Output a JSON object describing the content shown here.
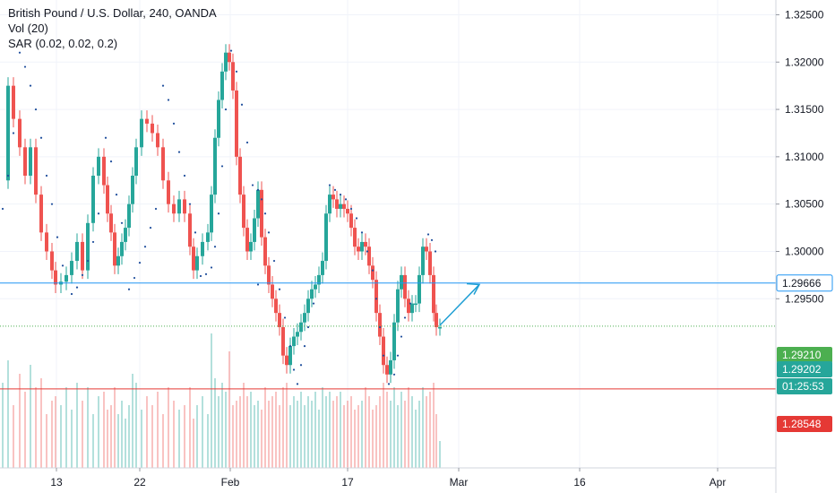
{
  "chart_data": {
    "type": "candlestick",
    "title": "British Pound / U.S. Dollar, 240, OANDA",
    "indicators": [
      "Vol (20)",
      "SAR (0.02, 0.02, 0.2)"
    ],
    "ylim": [
      1.2795,
      1.3258
    ],
    "y_ticks": [
      "1.32500",
      "1.32000",
      "1.31500",
      "1.31000",
      "1.30500",
      "1.30000",
      "1.29500"
    ],
    "x_ticks": [
      "13",
      "22",
      "Feb",
      "17",
      "Mar",
      "16",
      "Apr"
    ],
    "grid": true,
    "colors": {
      "up": "#26a69a",
      "down": "#ef5350",
      "sar": "#1f4e9c",
      "arrow": "#1e9ed4"
    },
    "horizontal_lines": [
      {
        "label": "1.29666",
        "value": 1.29666,
        "color": "#2196f3",
        "style": "solid"
      },
      {
        "label": "1.29210",
        "value": 1.2921,
        "color": "#4caf50",
        "style": "dotted"
      },
      {
        "label": "1.28548",
        "value": 1.28548,
        "color": "#e53935",
        "style": "solid"
      }
    ],
    "price_labels": [
      {
        "text": "1.29210",
        "color": "#4caf50"
      },
      {
        "text": "1.29202",
        "color": "#26a69a"
      },
      {
        "text": "01:25:53",
        "color": "#26a69a"
      },
      {
        "text": "1.28548",
        "color": "#e53935"
      }
    ],
    "price_path": [
      [
        1.3075,
        3
      ],
      [
        1.3175,
        9
      ],
      [
        1.314,
        15
      ],
      [
        1.311,
        22
      ],
      [
        1.308,
        28
      ],
      [
        1.311,
        34
      ],
      [
        1.306,
        40
      ],
      [
        1.302,
        46
      ],
      [
        1.3,
        52
      ],
      [
        1.298,
        58
      ],
      [
        1.2965,
        62
      ],
      [
        1.2968,
        68
      ],
      [
        1.2975,
        74
      ],
      [
        1.299,
        80
      ],
      [
        1.301,
        86
      ],
      [
        1.298,
        92
      ],
      [
        1.303,
        98
      ],
      [
        1.308,
        104
      ],
      [
        1.31,
        110
      ],
      [
        1.307,
        116
      ],
      [
        1.304,
        120
      ],
      [
        1.302,
        124
      ],
      [
        1.2985,
        128
      ],
      [
        1.2995,
        132
      ],
      [
        1.301,
        136
      ],
      [
        1.3025,
        140
      ],
      [
        1.305,
        144
      ],
      [
        1.308,
        148
      ],
      [
        1.311,
        152
      ],
      [
        1.314,
        158
      ],
      [
        1.3135,
        164
      ],
      [
        1.3125,
        170
      ],
      [
        1.311,
        176
      ],
      [
        1.3075,
        182
      ],
      [
        1.305,
        188
      ],
      [
        1.304,
        194
      ],
      [
        1.3055,
        200
      ],
      [
        1.304,
        206
      ],
      [
        1.3005,
        212
      ],
      [
        1.298,
        216
      ],
      [
        1.2995,
        220
      ],
      [
        1.301,
        226
      ],
      [
        1.302,
        232
      ],
      [
        1.306,
        236
      ],
      [
        1.312,
        240
      ],
      [
        1.316,
        244
      ],
      [
        1.319,
        248
      ],
      [
        1.321,
        252
      ],
      [
        1.32,
        256
      ],
      [
        1.317,
        260
      ],
      [
        1.31,
        264
      ],
      [
        1.306,
        268
      ],
      [
        1.3025,
        272
      ],
      [
        1.3,
        276
      ],
      [
        1.301,
        280
      ],
      [
        1.3035,
        284
      ],
      [
        1.3065,
        288
      ],
      [
        1.3015,
        292
      ],
      [
        1.2985,
        296
      ],
      [
        1.2965,
        300
      ],
      [
        1.295,
        304
      ],
      [
        1.2935,
        308
      ],
      [
        1.292,
        312
      ],
      [
        1.289,
        316
      ],
      [
        1.288,
        320
      ],
      [
        1.29,
        324
      ],
      [
        1.291,
        328
      ],
      [
        1.2915,
        332
      ],
      [
        1.2925,
        336
      ],
      [
        1.2935,
        340
      ],
      [
        1.295,
        344
      ],
      [
        1.296,
        348
      ],
      [
        1.2965,
        352
      ],
      [
        1.2975,
        356
      ],
      [
        1.299,
        360
      ],
      [
        1.304,
        364
      ],
      [
        1.306,
        368
      ],
      [
        1.3055,
        372
      ],
      [
        1.3045,
        376
      ],
      [
        1.305,
        380
      ],
      [
        1.3045,
        384
      ],
      [
        1.304,
        388
      ],
      [
        1.3025,
        392
      ],
      [
        1.3005,
        396
      ],
      [
        1.3,
        400
      ],
      [
        1.301,
        404
      ],
      [
        1.3005,
        408
      ],
      [
        1.2985,
        412
      ],
      [
        1.297,
        416
      ],
      [
        1.2935,
        420
      ],
      [
        1.291,
        424
      ],
      [
        1.288,
        428
      ],
      [
        1.287,
        432
      ],
      [
        1.2885,
        436
      ],
      [
        1.2925,
        440
      ],
      [
        1.296,
        444
      ],
      [
        1.2975,
        448
      ],
      [
        1.295,
        452
      ],
      [
        1.2935,
        456
      ],
      [
        1.2945,
        460
      ],
      [
        1.2945,
        464
      ],
      [
        1.2975,
        468
      ],
      [
        1.3005,
        472
      ],
      [
        1.3,
        476
      ],
      [
        1.2975,
        480
      ],
      [
        1.2935,
        484
      ],
      [
        1.292,
        487
      ],
      [
        1.292,
        491
      ]
    ],
    "volume_path": [
      [
        95,
        3
      ],
      [
        120,
        9
      ],
      [
        70,
        15
      ],
      [
        105,
        22
      ],
      [
        85,
        28
      ],
      [
        115,
        34
      ],
      [
        90,
        40
      ],
      [
        100,
        46
      ],
      [
        60,
        52
      ],
      [
        75,
        58
      ],
      [
        80,
        62
      ],
      [
        70,
        68
      ],
      [
        90,
        74
      ],
      [
        65,
        80
      ],
      [
        95,
        86
      ],
      [
        75,
        92
      ],
      [
        90,
        98
      ],
      [
        60,
        104
      ],
      [
        80,
        110
      ],
      [
        85,
        116
      ],
      [
        65,
        120
      ],
      [
        70,
        124
      ],
      [
        90,
        128
      ],
      [
        60,
        132
      ],
      [
        75,
        136
      ],
      [
        55,
        140
      ],
      [
        70,
        144
      ],
      [
        105,
        148
      ],
      [
        95,
        152
      ],
      [
        65,
        158
      ],
      [
        80,
        164
      ],
      [
        70,
        170
      ],
      [
        85,
        176
      ],
      [
        60,
        182
      ],
      [
        90,
        188
      ],
      [
        75,
        194
      ],
      [
        65,
        200
      ],
      [
        70,
        206
      ],
      [
        90,
        212
      ],
      [
        55,
        216
      ],
      [
        70,
        220
      ],
      [
        80,
        226
      ],
      [
        60,
        232
      ],
      [
        150,
        236
      ],
      [
        100,
        240
      ],
      [
        80,
        244
      ],
      [
        95,
        248
      ],
      [
        85,
        252
      ],
      [
        130,
        256
      ],
      [
        70,
        260
      ],
      [
        75,
        264
      ],
      [
        80,
        268
      ],
      [
        95,
        272
      ],
      [
        80,
        276
      ],
      [
        85,
        280
      ],
      [
        70,
        284
      ],
      [
        75,
        288
      ],
      [
        65,
        292
      ],
      [
        90,
        296
      ],
      [
        75,
        300
      ],
      [
        80,
        304
      ],
      [
        85,
        308
      ],
      [
        70,
        312
      ],
      [
        90,
        316
      ],
      [
        95,
        320
      ],
      [
        70,
        324
      ],
      [
        80,
        328
      ],
      [
        75,
        332
      ],
      [
        85,
        336
      ],
      [
        70,
        340
      ],
      [
        80,
        344
      ],
      [
        75,
        348
      ],
      [
        85,
        352
      ],
      [
        65,
        356
      ],
      [
        90,
        360
      ],
      [
        80,
        364
      ],
      [
        85,
        368
      ],
      [
        75,
        372
      ],
      [
        80,
        376
      ],
      [
        85,
        380
      ],
      [
        70,
        384
      ],
      [
        75,
        388
      ],
      [
        80,
        392
      ],
      [
        65,
        396
      ],
      [
        70,
        400
      ],
      [
        75,
        404
      ],
      [
        90,
        408
      ],
      [
        80,
        412
      ],
      [
        65,
        416
      ],
      [
        70,
        420
      ],
      [
        80,
        424
      ],
      [
        95,
        428
      ],
      [
        85,
        432
      ],
      [
        75,
        436
      ],
      [
        90,
        440
      ],
      [
        70,
        444
      ],
      [
        85,
        448
      ],
      [
        75,
        452
      ],
      [
        90,
        456
      ],
      [
        80,
        460
      ],
      [
        65,
        464
      ],
      [
        75,
        468
      ],
      [
        90,
        472
      ],
      [
        80,
        476
      ],
      [
        85,
        480
      ],
      [
        95,
        484
      ],
      [
        60,
        487
      ],
      [
        30,
        491
      ]
    ],
    "sar_path": [
      [
        1.3045,
        3
      ],
      [
        1.308,
        9
      ],
      [
        1.3125,
        15
      ],
      [
        1.321,
        22
      ],
      [
        1.3195,
        28
      ],
      [
        1.3175,
        34
      ],
      [
        1.315,
        40
      ],
      [
        1.312,
        46
      ],
      [
        1.308,
        52
      ],
      [
        1.305,
        58
      ],
      [
        1.3015,
        64
      ],
      [
        1.2985,
        70
      ],
      [
        1.2955,
        80
      ],
      [
        1.2962,
        86
      ],
      [
        1.2975,
        92
      ],
      [
        1.299,
        98
      ],
      [
        1.301,
        104
      ],
      [
        1.304,
        110
      ],
      [
        1.312,
        118
      ],
      [
        1.3095,
        124
      ],
      [
        1.306,
        130
      ],
      [
        1.303,
        136
      ],
      [
        1.296,
        144
      ],
      [
        1.2972,
        150
      ],
      [
        1.2988,
        156
      ],
      [
        1.3005,
        162
      ],
      [
        1.3025,
        168
      ],
      [
        1.3045,
        174
      ],
      [
        1.3175,
        182
      ],
      [
        1.316,
        188
      ],
      [
        1.3135,
        194
      ],
      [
        1.3105,
        200
      ],
      [
        1.308,
        206
      ],
      [
        1.305,
        212
      ],
      [
        1.302,
        218
      ],
      [
        1.2974,
        224
      ],
      [
        1.2976,
        230
      ],
      [
        1.2983,
        236
      ],
      [
        1.3005,
        240
      ],
      [
        1.304,
        244
      ],
      [
        1.309,
        248
      ],
      [
        1.315,
        252
      ],
      [
        1.3212,
        258
      ],
      [
        1.319,
        264
      ],
      [
        1.3155,
        270
      ],
      [
        1.3115,
        276
      ],
      [
        1.307,
        282
      ],
      [
        1.2965,
        288
      ],
      [
        1.3065,
        288
      ],
      [
        1.3055,
        292
      ],
      [
        1.304,
        296
      ],
      [
        1.302,
        300
      ],
      [
        1.299,
        306
      ],
      [
        1.296,
        312
      ],
      [
        1.293,
        318
      ],
      [
        1.29,
        324
      ],
      [
        1.2875,
        328
      ],
      [
        1.286,
        332
      ],
      [
        1.288,
        336
      ],
      [
        1.29,
        340
      ],
      [
        1.292,
        344
      ],
      [
        1.2945,
        350
      ],
      [
        1.307,
        368
      ],
      [
        1.3065,
        374
      ],
      [
        1.306,
        380
      ],
      [
        1.3055,
        386
      ],
      [
        1.3045,
        392
      ],
      [
        1.3035,
        398
      ],
      [
        1.302,
        404
      ],
      [
        1.3,
        410
      ],
      [
        1.298,
        416
      ],
      [
        1.295,
        420
      ],
      [
        1.292,
        424
      ],
      [
        1.289,
        428
      ],
      [
        1.286,
        434
      ],
      [
        1.287,
        440
      ],
      [
        1.289,
        444
      ],
      [
        1.291,
        448
      ],
      [
        1.293,
        452
      ],
      [
        1.2945,
        458
      ],
      [
        1.3018,
        478
      ],
      [
        1.3012,
        482
      ],
      [
        1.3,
        486
      ]
    ],
    "arrow": {
      "from": [
        491,
        1.2922
      ],
      "to": [
        535,
        1.2965
      ]
    }
  }
}
